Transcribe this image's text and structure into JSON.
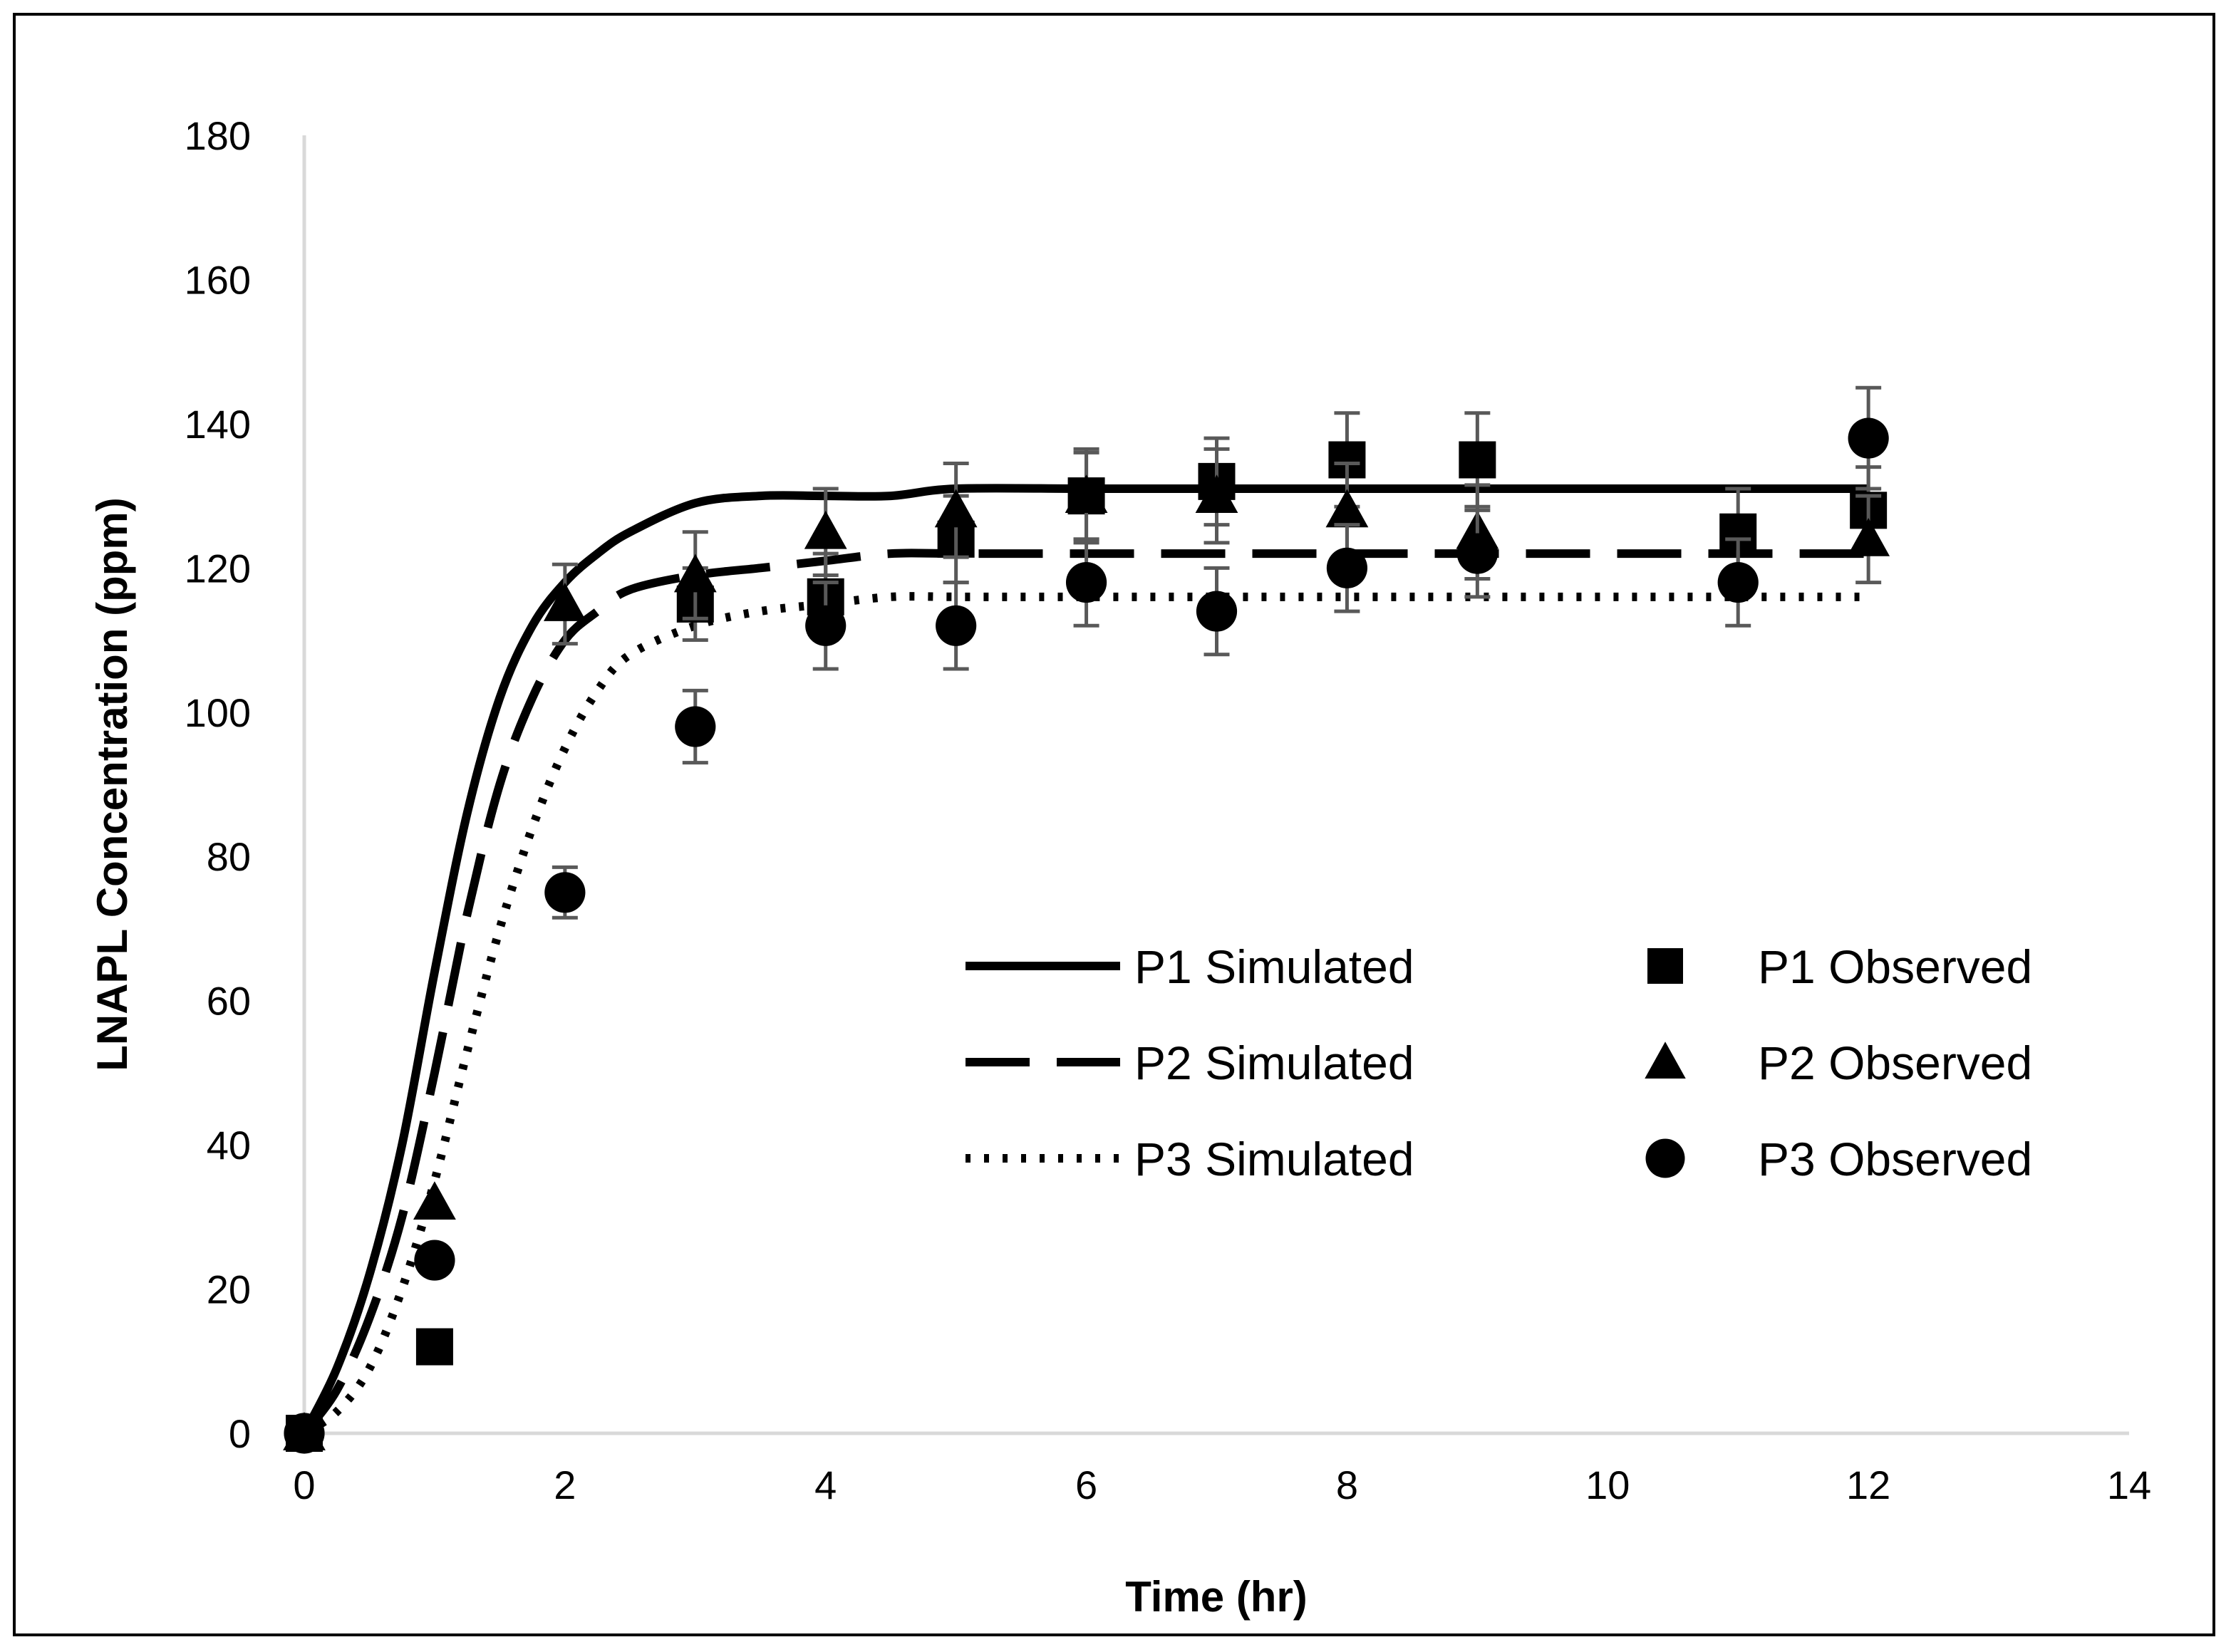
{
  "chart_data": {
    "type": "scatter",
    "title": "",
    "xlabel": "Time (hr)",
    "ylabel": "LNAPL Concentration (ppm)",
    "xlim": [
      0,
      14
    ],
    "ylim": [
      0,
      180
    ],
    "x_ticks": [
      0,
      2,
      4,
      6,
      8,
      10,
      12,
      14
    ],
    "y_ticks": [
      0,
      20,
      40,
      60,
      80,
      100,
      120,
      140,
      160,
      180
    ],
    "grid": false,
    "legend_position": "center-right",
    "series": [
      {
        "name": "P1 Simulated",
        "kind": "line",
        "style": "solid",
        "color": "#000000",
        "x": [
          0,
          0.25,
          0.5,
          0.75,
          1,
          1.25,
          1.5,
          1.75,
          2,
          2.25,
          2.5,
          3,
          3.5,
          4,
          4.5,
          5,
          6,
          7,
          8,
          9,
          10,
          11,
          12
        ],
        "y": [
          0,
          9,
          22,
          40,
          64,
          86,
          102,
          112,
          118,
          122,
          125,
          129,
          130,
          130,
          130,
          131,
          131,
          131,
          131,
          131,
          131,
          131,
          131
        ]
      },
      {
        "name": "P2 Simulated",
        "kind": "line",
        "style": "dashed",
        "color": "#000000",
        "x": [
          0,
          0.25,
          0.5,
          0.75,
          1,
          1.25,
          1.5,
          1.75,
          2,
          2.25,
          2.5,
          3,
          3.5,
          4,
          4.5,
          5,
          6,
          7,
          8,
          9,
          10,
          11,
          12
        ],
        "y": [
          0,
          6,
          16,
          30,
          50,
          72,
          90,
          102,
          110,
          114,
          117,
          119,
          120,
          121,
          122,
          122,
          122,
          122,
          122,
          122,
          122,
          122,
          122
        ]
      },
      {
        "name": "P3 Simulated",
        "kind": "line",
        "style": "dotted",
        "color": "#000000",
        "x": [
          0,
          0.25,
          0.5,
          0.75,
          1,
          1.25,
          1.5,
          1.75,
          2,
          2.25,
          2.5,
          3,
          3.5,
          4,
          4.5,
          5,
          6,
          7,
          8,
          9,
          10,
          11,
          12
        ],
        "y": [
          0,
          3,
          9,
          20,
          35,
          53,
          70,
          84,
          95,
          103,
          108,
          112,
          114,
          115,
          116,
          116,
          116,
          116,
          116,
          116,
          116,
          116,
          116
        ]
      },
      {
        "name": "P1 Observed",
        "kind": "points",
        "marker": "square",
        "color": "#000000",
        "x": [
          0,
          1,
          3,
          4,
          5,
          6,
          7,
          8,
          9,
          11,
          12
        ],
        "y": [
          0,
          12,
          115,
          116,
          124,
          130,
          132,
          135,
          135,
          125,
          128
        ],
        "error": [
          0,
          0,
          5,
          6,
          6,
          6,
          6,
          6.5,
          6.5,
          6,
          6
        ]
      },
      {
        "name": "P2 Observed",
        "kind": "points",
        "marker": "triangle",
        "color": "#000000",
        "x": [
          0,
          1,
          2,
          3,
          4,
          5,
          6,
          7,
          8,
          9,
          12
        ],
        "y": [
          0,
          32,
          115,
          119,
          125,
          128,
          130,
          130,
          128,
          125,
          124
        ],
        "error": [
          0,
          0,
          5.5,
          6,
          6,
          6.5,
          6.5,
          6.5,
          6.5,
          6.5,
          6
        ]
      },
      {
        "name": "P3 Observed",
        "kind": "points",
        "marker": "circle",
        "color": "#000000",
        "x": [
          0,
          1,
          2,
          3,
          4,
          5,
          6,
          7,
          8,
          9,
          11,
          12
        ],
        "y": [
          0,
          24,
          75,
          98,
          112,
          112,
          118,
          114,
          120,
          122,
          118,
          138
        ],
        "error": [
          0,
          0,
          3.5,
          5,
          6,
          6,
          6,
          6,
          6,
          6,
          6,
          7
        ]
      }
    ]
  }
}
